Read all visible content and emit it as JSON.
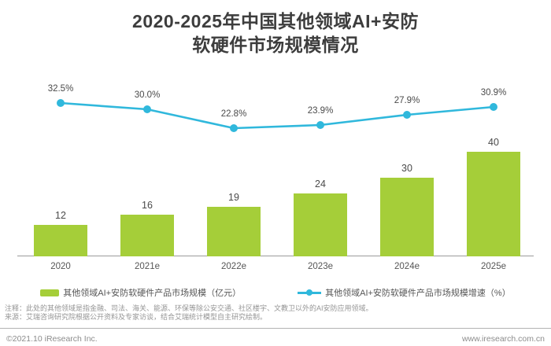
{
  "page": {
    "title_line1": "2020-2025年中国其他领域AI+安防",
    "title_line2": "软硬件市场规模情况",
    "note": "注释：此处的其他领域是指金融、司法、海关、能源、环保等除公安交通、社区楼宇、文教卫以外的AI安防应用领域。",
    "source": "来源：艾瑞咨询研究院根据公开资料及专家访谈，结合艾瑞统计模型自主研究绘制。",
    "copyright": "©2021.10 iResearch Inc.",
    "website": "www.iresearch.com.cn"
  },
  "legend": {
    "bar_label": "其他领域AI+安防软硬件产品市场规模（亿元）",
    "line_label": "其他领域AI+安防软硬件产品市场规模增速（%）"
  },
  "colors": {
    "bar": "#a5ce39",
    "line": "#30b8dc",
    "title_text": "#3d3d3d",
    "label_text": "#4a4a4a",
    "axis": "#9a9a9a"
  },
  "chart_data": {
    "type": "bar",
    "title": "2020-2025年中国其他领域AI+安防软硬件市场规模情况",
    "categories": [
      "2020",
      "2021e",
      "2022e",
      "2023e",
      "2024e",
      "2025e"
    ],
    "series": [
      {
        "name": "其他领域AI+安防软硬件产品市场规模（亿元）",
        "type": "bar",
        "unit": "亿元",
        "values": [
          12,
          16,
          19,
          24,
          30,
          40
        ]
      },
      {
        "name": "其他领域AI+安防软硬件产品市场规模增速（%）",
        "type": "line",
        "unit": "%",
        "values": [
          32.5,
          30.0,
          22.8,
          23.9,
          27.9,
          30.9
        ]
      }
    ],
    "xlabel": "",
    "ylabel": "",
    "grid": false,
    "legend_position": "bottom",
    "bar_ylim": [
      0,
      45
    ],
    "line_ylim": [
      0,
      40
    ]
  }
}
